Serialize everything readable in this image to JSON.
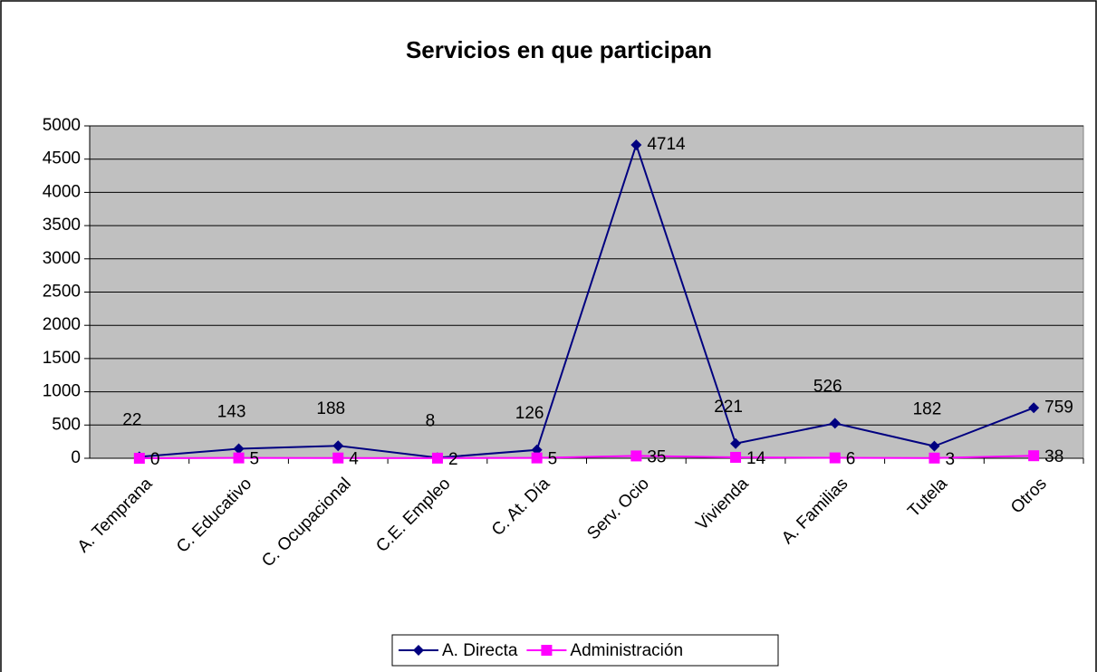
{
  "chart_data": {
    "type": "line",
    "title": "Servicios en que participan",
    "categories": [
      "A. Temprana",
      "C. Educativo",
      "C. Ocupacional",
      "C.E. Empleo",
      "C. At. Día",
      "Serv. Ocio",
      "Vivienda",
      "A. Familias",
      "Tutela",
      "Otros"
    ],
    "series": [
      {
        "name": "A. Directa",
        "color": "#000080",
        "marker": "diamond",
        "values": [
          22,
          143,
          188,
          8,
          126,
          4714,
          221,
          526,
          182,
          759
        ]
      },
      {
        "name": "Administración",
        "color": "#ff00ff",
        "marker": "square",
        "values": [
          0,
          5,
          4,
          2,
          5,
          35,
          14,
          6,
          3,
          38
        ]
      }
    ],
    "ylim": [
      0,
      5000
    ],
    "yticks": [
      0,
      500,
      1000,
      1500,
      2000,
      2500,
      3000,
      3500,
      4000,
      4500,
      5000
    ],
    "grid": true,
    "plot_background": "#c0c0c0",
    "legend": "bottom"
  }
}
